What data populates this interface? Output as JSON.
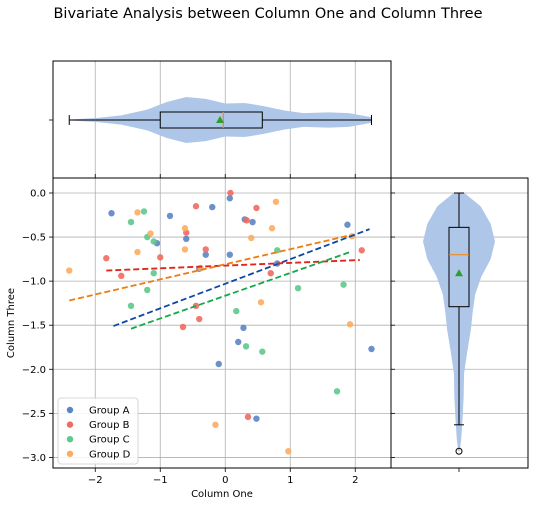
{
  "figure": {
    "title": "Bivariate Analysis between Column One and Column Three"
  },
  "chart_data": {
    "type": "scatter",
    "title": "Bivariate Analysis between Column One and Column Three",
    "xlabel": "Column One",
    "ylabel": "Column Three",
    "xlim": [
      -2.65,
      2.55
    ],
    "ylim": [
      -3.12,
      0.17
    ],
    "xticks": [
      -2,
      -1,
      0,
      1,
      2
    ],
    "yticks": [
      0.0,
      -0.5,
      -1.0,
      -1.5,
      -2.0,
      -2.5,
      -3.0
    ],
    "xtick_labels": [
      "−2",
      "−1",
      "0",
      "1",
      "2"
    ],
    "ytick_labels": [
      "0.0",
      "−0.5",
      "−1.0",
      "−1.5",
      "−2.0",
      "−2.5",
      "−3.0"
    ],
    "grid": true,
    "legend": "lower-left",
    "series": [
      {
        "name": "Group A",
        "color": "#5b84c4",
        "points": [
          [
            -1.75,
            -0.23
          ],
          [
            -1.05,
            -0.57
          ],
          [
            -0.85,
            -0.26
          ],
          [
            -0.6,
            -0.52
          ],
          [
            -0.2,
            -0.16
          ],
          [
            0.07,
            -0.06
          ],
          [
            0.07,
            -0.7
          ],
          [
            -0.3,
            -0.7
          ],
          [
            0.42,
            -0.33
          ],
          [
            0.3,
            -0.3
          ],
          [
            -0.4,
            -0.86
          ],
          [
            -0.1,
            -1.94
          ],
          [
            0.2,
            -1.69
          ],
          [
            0.28,
            -1.53
          ],
          [
            1.88,
            -0.36
          ],
          [
            0.48,
            -2.56
          ],
          [
            2.25,
            -1.77
          ],
          [
            0.8,
            -0.8
          ]
        ]
      },
      {
        "name": "Group B",
        "color": "#ef6a61",
        "points": [
          [
            0.08,
            0.0
          ],
          [
            0.48,
            -0.17
          ],
          [
            -0.45,
            -0.15
          ],
          [
            0.33,
            -0.31
          ],
          [
            -0.6,
            -0.45
          ],
          [
            -0.3,
            -0.64
          ],
          [
            0.7,
            -0.91
          ],
          [
            -1.6,
            -0.94
          ],
          [
            -1.0,
            -0.73
          ],
          [
            -1.83,
            -0.74
          ],
          [
            -0.4,
            -1.43
          ],
          [
            -0.65,
            -1.52
          ],
          [
            0.35,
            -2.54
          ],
          [
            2.1,
            -0.65
          ],
          [
            -0.45,
            -1.28
          ]
        ]
      },
      {
        "name": "Group C",
        "color": "#5dc98b",
        "points": [
          [
            -1.25,
            -0.21
          ],
          [
            -1.45,
            -0.33
          ],
          [
            -1.2,
            -0.5
          ],
          [
            -1.1,
            -0.55
          ],
          [
            -1.1,
            -0.91
          ],
          [
            -1.2,
            -1.1
          ],
          [
            -1.45,
            -1.28
          ],
          [
            0.8,
            -0.65
          ],
          [
            0.17,
            -1.34
          ],
          [
            0.32,
            -1.74
          ],
          [
            0.57,
            -1.8
          ],
          [
            1.12,
            -1.08
          ],
          [
            1.82,
            -1.04
          ],
          [
            1.72,
            -2.25
          ]
        ]
      },
      {
        "name": "Group D",
        "color": "#fcac5e",
        "points": [
          [
            -2.4,
            -0.88
          ],
          [
            -1.35,
            -0.22
          ],
          [
            -1.15,
            -0.46
          ],
          [
            -1.35,
            -0.67
          ],
          [
            -0.62,
            -0.4
          ],
          [
            -0.62,
            -0.64
          ],
          [
            0.78,
            -0.1
          ],
          [
            0.72,
            -0.4
          ],
          [
            0.4,
            -0.51
          ],
          [
            -0.38,
            -0.85
          ],
          [
            0.55,
            -1.24
          ],
          [
            -0.15,
            -2.63
          ],
          [
            0.97,
            -2.93
          ],
          [
            1.92,
            -1.49
          ],
          [
            1.95,
            -0.49
          ]
        ]
      }
    ],
    "trend_lines": [
      {
        "group": "Group A",
        "color": "#0b48a6",
        "x": [
          -1.72,
          2.22
        ],
        "y": [
          -1.51,
          -0.41
        ]
      },
      {
        "group": "Group B",
        "color": "#e0261a",
        "x": [
          -1.83,
          2.07
        ],
        "y": [
          -0.88,
          -0.76
        ]
      },
      {
        "group": "Group C",
        "color": "#13a84a",
        "x": [
          -1.45,
          1.92
        ],
        "y": [
          -1.54,
          -0.67
        ]
      },
      {
        "group": "Group D",
        "color": "#ef7b0e",
        "x": [
          -2.4,
          1.92
        ],
        "y": [
          -1.22,
          -0.48
        ]
      }
    ],
    "marginal_x": {
      "type": "violin-box",
      "color": "#aec6e8",
      "min": -2.4,
      "q1": -1.0,
      "median": -0.03,
      "mean": -0.08,
      "q3": 0.57,
      "max": 2.25,
      "density": [
        [
          -2.4,
          0.02
        ],
        [
          -2.0,
          0.08
        ],
        [
          -1.6,
          0.2
        ],
        [
          -1.2,
          0.45
        ],
        [
          -0.9,
          0.78
        ],
        [
          -0.6,
          1.0
        ],
        [
          -0.3,
          0.92
        ],
        [
          0.0,
          0.72
        ],
        [
          0.3,
          0.74
        ],
        [
          0.6,
          0.6
        ],
        [
          0.9,
          0.42
        ],
        [
          1.2,
          0.3
        ],
        [
          1.6,
          0.33
        ],
        [
          1.9,
          0.3
        ],
        [
          2.25,
          0.12
        ]
      ]
    },
    "marginal_y": {
      "type": "violin-box",
      "color": "#aec6e8",
      "min": -2.63,
      "q1": -1.29,
      "median": -0.7,
      "mean": -0.91,
      "q3": -0.39,
      "max": -0.0,
      "outliers": [
        -2.93
      ],
      "density": [
        [
          0.0,
          0.15
        ],
        [
          -0.15,
          0.6
        ],
        [
          -0.35,
          0.88
        ],
        [
          -0.55,
          1.0
        ],
        [
          -0.75,
          0.88
        ],
        [
          -0.95,
          0.62
        ],
        [
          -1.15,
          0.45
        ],
        [
          -1.35,
          0.38
        ],
        [
          -1.55,
          0.33
        ],
        [
          -1.8,
          0.23
        ],
        [
          -2.05,
          0.14
        ],
        [
          -2.3,
          0.13
        ],
        [
          -2.55,
          0.1
        ],
        [
          -2.8,
          0.06
        ],
        [
          -2.93,
          0.02
        ]
      ]
    }
  }
}
